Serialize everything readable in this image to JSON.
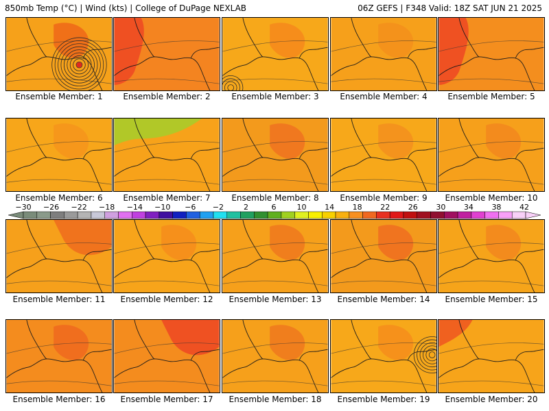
{
  "header": {
    "left": "850mb Temp (°C) | Wind (kts) | College of DuPage NEXLAB",
    "right": "06Z GEFS | F348 Valid: 18Z SAT JUN 21 2025"
  },
  "members": [
    {
      "label": "Ensemble Member: 1",
      "base": "#f6a11a",
      "accent": "#f06a18",
      "feature": "low"
    },
    {
      "label": "Ensemble Member: 2",
      "base": "#f48420",
      "accent": "#ee4a22",
      "feature": "hot-west"
    },
    {
      "label": "Ensemble Member: 3",
      "base": "#f7a81a",
      "accent": "#f58a1c",
      "feature": "low-sw"
    },
    {
      "label": "Ensemble Member: 4",
      "base": "#f6a01b",
      "accent": "#f4901c",
      "feature": "none"
    },
    {
      "label": "Ensemble Member: 5",
      "base": "#f48e1e",
      "accent": "#ee4a22",
      "feature": "hot-west"
    },
    {
      "label": "Ensemble Member: 6",
      "base": "#f7a61a",
      "accent": "#f5961c",
      "feature": "none"
    },
    {
      "label": "Ensemble Member: 7",
      "base": "#f7a21a",
      "accent": "#a8cc2a",
      "feature": "cool-north"
    },
    {
      "label": "Ensemble Member: 8",
      "base": "#f39a1c",
      "accent": "#f07420",
      "feature": "none"
    },
    {
      "label": "Ensemble Member: 9",
      "base": "#f7a81a",
      "accent": "#f3901e",
      "feature": "none"
    },
    {
      "label": "Ensemble Member: 10",
      "base": "#f6a01b",
      "accent": "#f3881e",
      "feature": "none"
    },
    {
      "label": "Ensemble Member: 11",
      "base": "#f6a01b",
      "accent": "#f06e1e",
      "feature": "hot-ne"
    },
    {
      "label": "Ensemble Member: 12",
      "base": "#f7a41a",
      "accent": "#f58e1c",
      "feature": "none"
    },
    {
      "label": "Ensemble Member: 13",
      "base": "#f6a01b",
      "accent": "#f07a1e",
      "feature": "none"
    },
    {
      "label": "Ensemble Member: 14",
      "base": "#f39a1c",
      "accent": "#f07020",
      "feature": "none"
    },
    {
      "label": "Ensemble Member: 15",
      "base": "#f6a41a",
      "accent": "#f3881e",
      "feature": "none"
    },
    {
      "label": "Ensemble Member: 16",
      "base": "#f48c1e",
      "accent": "#f06a1e",
      "feature": "none"
    },
    {
      "label": "Ensemble Member: 17",
      "base": "#f48c1e",
      "accent": "#ee4a22",
      "feature": "hot-ne"
    },
    {
      "label": "Ensemble Member: 18",
      "base": "#f6a01b",
      "accent": "#f07a1e",
      "feature": "none"
    },
    {
      "label": "Ensemble Member: 19",
      "base": "#f7a81a",
      "accent": "#f58e1c",
      "feature": "low-east"
    },
    {
      "label": "Ensemble Member: 20",
      "base": "#f7a41a",
      "accent": "#ee5a20",
      "feature": "hot-nw"
    }
  ],
  "colorbar": {
    "ticks": [
      "-30",
      "-26",
      "-22",
      "-18",
      "-14",
      "-10",
      "-6",
      "-2",
      "2",
      "6",
      "10",
      "14",
      "18",
      "22",
      "26",
      "30",
      "34",
      "38",
      "42"
    ],
    "colors": [
      "#7a8c7a",
      "#8a9a8a",
      "#7e7e7e",
      "#9a9a9a",
      "#b4b4b4",
      "#c8c8d8",
      "#d0a0e0",
      "#e070f0",
      "#c040e0",
      "#8020c0",
      "#4010a0",
      "#1020c0",
      "#2060e0",
      "#20a0f0",
      "#20e0f0",
      "#20c0a0",
      "#20a060",
      "#309030",
      "#60b020",
      "#a0d020",
      "#e0f020",
      "#f8f000",
      "#f8d000",
      "#f8b010",
      "#f89020",
      "#f06820",
      "#e83020",
      "#e01818",
      "#c01010",
      "#a01020",
      "#901030",
      "#a01060",
      "#c020a0",
      "#e040d0",
      "#f070f0",
      "#f8a0f8",
      "#f8d0f8"
    ]
  }
}
